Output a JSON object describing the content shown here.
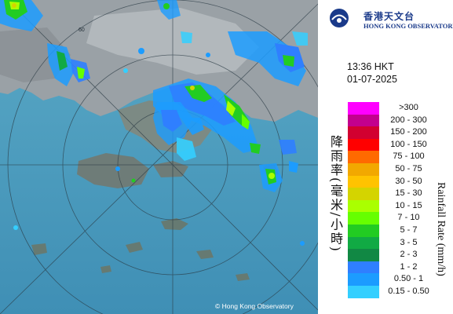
{
  "header": {
    "logo_zh": "香港天文台",
    "logo_en": "HONG KONG OBSERVATORY"
  },
  "timestamp": {
    "time": "13:36 HKT",
    "date": "01-07-2025"
  },
  "legend": {
    "title_en": "Rainfall Rate (mm/h)",
    "title_zh": "降雨率(毫米/小時)",
    "items": [
      {
        "label": ">300",
        "color": "#ff00ff"
      },
      {
        "label": "200 - 300",
        "color": "#c3008e"
      },
      {
        "label": "150 - 200",
        "color": "#d20030"
      },
      {
        "label": "100 - 150",
        "color": "#ff0000"
      },
      {
        "label": "75 - 100",
        "color": "#ff6a00"
      },
      {
        "label": "50 - 75",
        "color": "#f2a800"
      },
      {
        "label": "30 - 50",
        "color": "#ffc300"
      },
      {
        "label": "15 - 30",
        "color": "#d4d400"
      },
      {
        "label": "10 - 15",
        "color": "#aaff00"
      },
      {
        "label": "7 - 10",
        "color": "#66ff00"
      },
      {
        "label": "5 - 7",
        "color": "#22cc22"
      },
      {
        "label": "3 - 5",
        "color": "#11aa44"
      },
      {
        "label": "2 - 3",
        "color": "#118844"
      },
      {
        "label": "1 - 2",
        "color": "#2f7fff"
      },
      {
        "label": "0.50 - 1",
        "color": "#1c9cff"
      },
      {
        "label": "0.15 - 0.50",
        "color": "#34cfff"
      }
    ]
  },
  "map": {
    "range_label": "60",
    "copyright": "© Hong Kong Observatory"
  }
}
